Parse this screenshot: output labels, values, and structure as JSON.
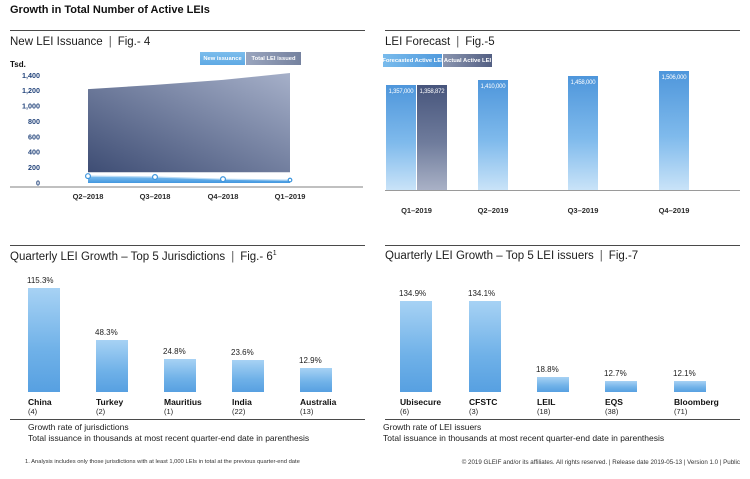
{
  "page": {
    "title": "Growth in Total Number of Active LEIs",
    "separator": "|",
    "footnote": "1. Analysis includes only those jurisdictions with at least 1,000 LEIs in total at the previous quarter-end date",
    "copyright": "© 2019 GLEIF and/or its affiliates. All rights reserved.  |  Release date 2019-05-13  |  Version 1.0  |  Public"
  },
  "colors": {
    "light_blue": "#57a5e3",
    "bar_gradient_top": "#4e96db",
    "bar_gradient_bottom": "#c9e3f8",
    "slate_dark": "#47557a",
    "slate_light": "#9faac4",
    "tick_navy": "#24457c"
  },
  "chart_data": [
    {
      "id": "fig4",
      "type": "area",
      "title": "New LEI Issuance",
      "fig_label": "Fig.- 4",
      "ylabel": "Tsd.",
      "categories": [
        "Q2–2018",
        "Q3–2018",
        "Q4–2018",
        "Q1–2019"
      ],
      "series": [
        {
          "name": "New issuance",
          "values": [
            90,
            78,
            50,
            38
          ]
        },
        {
          "name": "Total LEI issued",
          "values": [
            1220,
            1275,
            1340,
            1430
          ],
          "band_base": 140
        }
      ],
      "yticks": [
        0,
        200,
        400,
        600,
        800,
        1000,
        1200,
        1400
      ],
      "ylim": [
        0,
        1400
      ],
      "grid": false,
      "legend_position": "top-right"
    },
    {
      "id": "fig5",
      "type": "bar",
      "title": "LEI Forecast",
      "fig_label": "Fig.-5",
      "categories": [
        "Q1–2019",
        "Q2–2019",
        "Q3–2019",
        "Q4–2019"
      ],
      "series": [
        {
          "name": "Forecasted Active LEI",
          "values": [
            1357000,
            1410000,
            1458000,
            1506000
          ]
        },
        {
          "name": "Actual Active LEI",
          "values": [
            1358872,
            null,
            null,
            null
          ]
        }
      ],
      "legend_position": "top-left"
    },
    {
      "id": "fig6",
      "type": "bar",
      "title": "Quarterly LEI Growth – Top 5 Jurisdictions",
      "fig_label": "Fig.- 6",
      "fig_superscript": "1",
      "categories": [
        "China",
        "Turkey",
        "Mauritius",
        "India",
        "Australia"
      ],
      "counts": [
        "(4)",
        "(2)",
        "(1)",
        "(22)",
        "(13)"
      ],
      "values": [
        115.3,
        48.3,
        24.8,
        23.6,
        12.9
      ],
      "unit": "%",
      "note_line1": "Growth rate of jurisdictions",
      "note_line2": "Total issuance in thousands at most recent quarter-end date in parenthesis"
    },
    {
      "id": "fig7",
      "type": "bar",
      "title": "Quarterly LEI Growth – Top 5 LEI issuers",
      "fig_label": "Fig.-7",
      "categories": [
        "Ubisecure",
        "CFSTC",
        "LEIL",
        "EQS",
        "Bloomberg"
      ],
      "counts": [
        "(6)",
        "(3)",
        "(18)",
        "(38)",
        "(71)"
      ],
      "values": [
        134.9,
        134.1,
        18.8,
        12.7,
        12.1
      ],
      "unit": "%",
      "note_line1": "Growth rate of LEI issuers",
      "note_line2": "Total issuance in thousands at most recent quarter-end date in parenthesis"
    }
  ]
}
